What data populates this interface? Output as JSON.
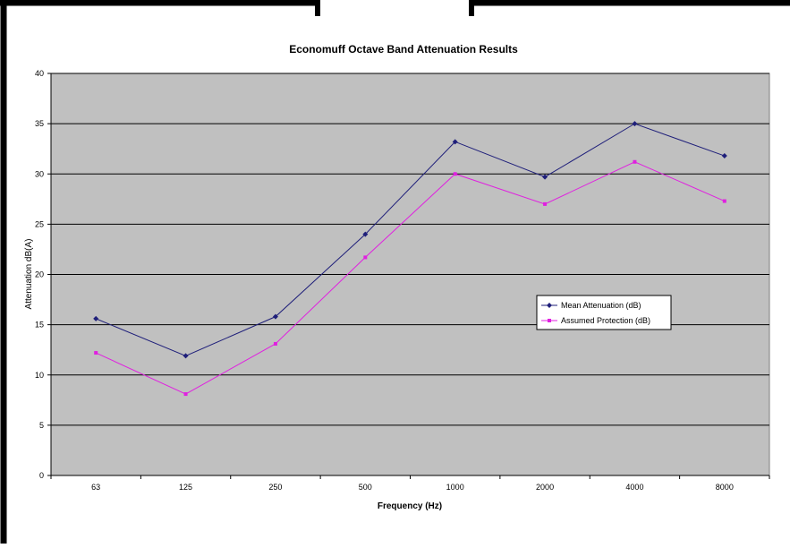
{
  "chart_data": {
    "type": "line",
    "title": "Economuff Octave Band Attenuation Results",
    "xlabel": "Frequency (Hz)",
    "ylabel": "Attenuation dB(A)",
    "categories": [
      "63",
      "125",
      "250",
      "500",
      "1000",
      "2000",
      "4000",
      "8000"
    ],
    "ylim": [
      0,
      40
    ],
    "yticks": [
      "0",
      "5",
      "10",
      "15",
      "20",
      "25",
      "30",
      "35",
      "40"
    ],
    "grid": true,
    "legend_position": "right",
    "plot_background": "#c0c0c0",
    "series": [
      {
        "name": "Mean Attenuation (dB)",
        "color": "#1f1f7a",
        "marker": "diamond",
        "values": [
          15.6,
          11.9,
          15.8,
          24.0,
          33.2,
          29.7,
          35.0,
          31.8
        ]
      },
      {
        "name": "Assumed Protection (dB)",
        "color": "#e020e0",
        "marker": "square",
        "values": [
          12.2,
          8.1,
          13.1,
          21.7,
          30.0,
          27.0,
          31.2,
          27.3
        ]
      }
    ]
  }
}
